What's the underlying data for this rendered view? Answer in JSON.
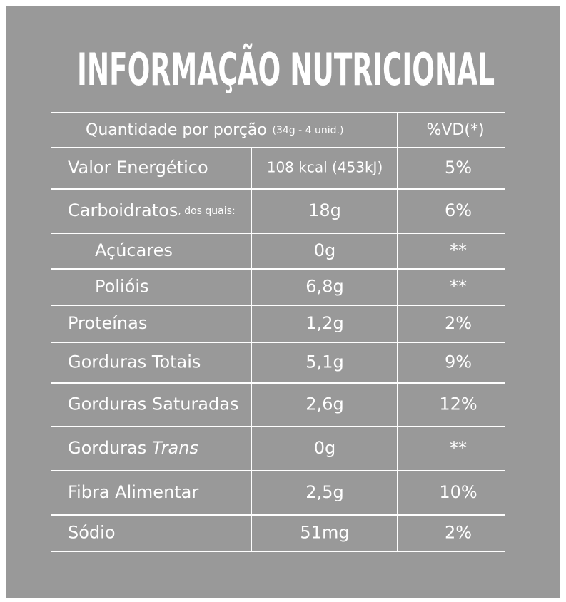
{
  "header": {
    "title": "INFORMAÇÃO NUTRICIONAL"
  },
  "table": {
    "head": {
      "label": "Quantidade por porção",
      "portion": "(34g - 4 unid.)",
      "vd": "%VD(*)"
    },
    "rows": [
      {
        "label": "Valor Energético",
        "amount": "108 kcal (453kJ)",
        "vd": "5%"
      },
      {
        "label": "Carboidratos",
        "note": ", dos quais:",
        "amount": "18g",
        "vd": "6%"
      },
      {
        "label": "Açúcares",
        "amount": "0g",
        "vd": "**"
      },
      {
        "label": "Polióis",
        "amount": "6,8g",
        "vd": "**"
      },
      {
        "label": "Proteínas",
        "amount": "1,2g",
        "vd": "2%"
      },
      {
        "label": "Gorduras Totais",
        "amount": "5,1g",
        "vd": "9%"
      },
      {
        "label": "Gorduras Saturadas",
        "amount": "2,6g",
        "vd": "12%"
      },
      {
        "label": "Gorduras",
        "italic": "Trans",
        "amount": "0g",
        "vd": "**"
      },
      {
        "label": "Fibra Alimentar",
        "amount": "2,5g",
        "vd": "10%"
      },
      {
        "label": "Sódio",
        "amount": "51mg",
        "vd": "2%"
      }
    ]
  }
}
